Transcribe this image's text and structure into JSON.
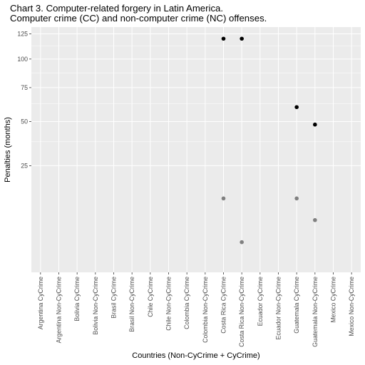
{
  "chart_data": {
    "type": "scatter",
    "title": "Chart 3. Computer-related forgery in Latin America.",
    "subtitle": "Computer crime (CC) and non-computer crime (NC) offenses.",
    "xlabel": "Countries (Non-CyCrime + CyCrime)",
    "ylabel": "Penalties (months)",
    "y_scale": "sqrt",
    "ylim": [
      0,
      125
    ],
    "y_ticks": [
      25,
      50,
      75,
      100,
      125
    ],
    "grid": true,
    "legend": "none",
    "categories": [
      "Argentina CyCrime",
      "Argentina Non-CyCrime",
      "Bolivia CyCrime",
      "Bolivia Non-CyCrime",
      "Brasil CyCrime",
      "Brasil Non-CyCrime",
      "Chile CyCrime",
      "Chile Non-CyCrime",
      "Colombia CyCrime",
      "Colombia Non-CyCrime",
      "Costa Rica CyCrime",
      "Costa Rica Non-CyCrime",
      "Ecuador CyCrime",
      "Ecuador Non-CyCrime",
      "Guatemala CyCrime",
      "Guatemala Non-CyCrime",
      "Mexico CyCrime",
      "Mexico Non-CyCrime"
    ],
    "series": [
      {
        "color": "#000000",
        "points": [
          {
            "x": "Costa Rica CyCrime",
            "y": 120
          },
          {
            "x": "Costa Rica Non-CyCrime",
            "y": 120
          },
          {
            "x": "Guatemala CyCrime",
            "y": 60
          },
          {
            "x": "Guatemala Non-CyCrime",
            "y": 48
          }
        ]
      },
      {
        "color": "#808080",
        "points": [
          {
            "x": "Costa Rica CyCrime",
            "y": 12
          },
          {
            "x": "Costa Rica Non-CyCrime",
            "y": 2
          },
          {
            "x": "Guatemala CyCrime",
            "y": 12
          },
          {
            "x": "Guatemala Non-CyCrime",
            "y": 6
          }
        ]
      }
    ]
  },
  "colors": {
    "panel_background": "#ebebeb",
    "grid_major": "#ffffff",
    "tick_label": "#4d4d4d"
  }
}
